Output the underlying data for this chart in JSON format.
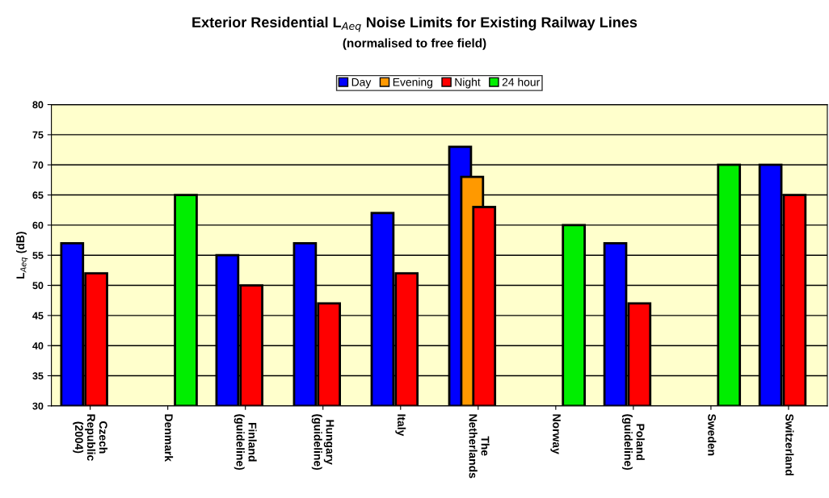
{
  "chart_data": {
    "type": "bar",
    "title": "Exterior Residential L$_{Aeq}$ Noise Limits for Existing Railway Lines",
    "subtitle": "(normalised to free field)",
    "ylabel": "L$_{Aeq}$ (dB)",
    "categories": [
      "Czech\nRepublic\n(2004)",
      "Denmark",
      "Finland\n(guideline)",
      "Hungary\n(guideline)",
      "Italy",
      "The\nNetherlands",
      "Norway",
      "Poland\n(guideline)",
      "Sweden",
      "Switzerland"
    ],
    "series": [
      {
        "name": "Day",
        "color": "#0000ff",
        "values": [
          57,
          null,
          55,
          57,
          62,
          73,
          null,
          57,
          null,
          70
        ]
      },
      {
        "name": "Evening",
        "color": "#ff9900",
        "values": [
          null,
          null,
          null,
          null,
          null,
          68,
          null,
          null,
          null,
          null
        ]
      },
      {
        "name": "Night",
        "color": "#ff0000",
        "values": [
          52,
          null,
          50,
          47,
          52,
          63,
          null,
          47,
          null,
          65
        ]
      },
      {
        "name": "24 hour",
        "color": "#00ee00",
        "values": [
          null,
          65,
          null,
          null,
          null,
          null,
          60,
          null,
          70,
          null
        ]
      }
    ],
    "ylim": [
      30,
      80
    ],
    "yticks": [
      30,
      35,
      40,
      45,
      50,
      55,
      60,
      65,
      70,
      75,
      80
    ],
    "grid": "y",
    "legend": "top"
  }
}
